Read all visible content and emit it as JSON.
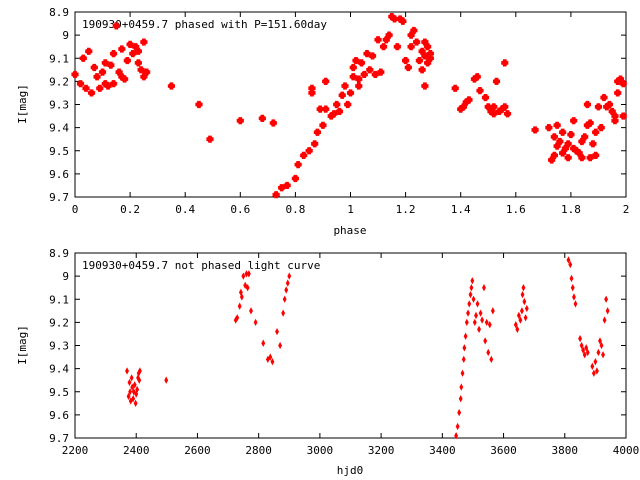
{
  "chart_data": [
    {
      "type": "scatter",
      "title": "190930+0459.7 phased with P=151.60day",
      "xlabel": "phase",
      "ylabel": "I[mag]",
      "xlim": [
        0,
        2
      ],
      "ylim": [
        9.7,
        8.9
      ],
      "y_inverted": true,
      "xticks": [
        "0",
        "0.2",
        "0.4",
        "0.6",
        "0.8",
        "1",
        "1.2",
        "1.4",
        "1.6",
        "1.8",
        "2"
      ],
      "yticks": [
        "8.9",
        "9",
        "9.1",
        "9.2",
        "9.3",
        "9.4",
        "9.5",
        "9.6",
        "9.7"
      ],
      "point_color": "#ff0000",
      "points": [
        [
          0.0,
          9.17
        ],
        [
          0.02,
          9.21
        ],
        [
          0.03,
          9.1
        ],
        [
          0.04,
          9.23
        ],
        [
          0.05,
          9.07
        ],
        [
          0.06,
          9.25
        ],
        [
          0.07,
          9.14
        ],
        [
          0.08,
          9.18
        ],
        [
          0.09,
          9.23
        ],
        [
          0.1,
          9.16
        ],
        [
          0.11,
          9.21
        ],
        [
          0.11,
          9.12
        ],
        [
          0.12,
          9.22
        ],
        [
          0.13,
          9.13
        ],
        [
          0.14,
          9.21
        ],
        [
          0.14,
          9.08
        ],
        [
          0.15,
          8.96
        ],
        [
          0.16,
          9.16
        ],
        [
          0.17,
          9.18
        ],
        [
          0.17,
          9.06
        ],
        [
          0.18,
          9.19
        ],
        [
          0.19,
          9.11
        ],
        [
          0.2,
          9.04
        ],
        [
          0.21,
          9.08
        ],
        [
          0.22,
          9.05
        ],
        [
          0.23,
          9.12
        ],
        [
          0.23,
          9.07
        ],
        [
          0.24,
          9.15
        ],
        [
          0.25,
          9.03
        ],
        [
          0.25,
          9.18
        ],
        [
          0.26,
          9.16
        ],
        [
          0.35,
          9.22
        ],
        [
          0.45,
          9.3
        ],
        [
          0.49,
          9.45
        ],
        [
          0.6,
          9.37
        ],
        [
          0.68,
          9.36
        ],
        [
          0.72,
          9.38
        ],
        [
          0.73,
          9.69
        ],
        [
          0.75,
          9.66
        ],
        [
          0.77,
          9.65
        ],
        [
          0.8,
          9.62
        ],
        [
          0.81,
          9.56
        ],
        [
          0.83,
          9.52
        ],
        [
          0.85,
          9.5
        ],
        [
          0.86,
          9.23
        ],
        [
          0.86,
          9.25
        ],
        [
          0.87,
          9.47
        ],
        [
          0.88,
          9.42
        ],
        [
          0.89,
          9.32
        ],
        [
          0.9,
          9.39
        ],
        [
          0.91,
          9.32
        ],
        [
          0.91,
          9.2
        ],
        [
          0.93,
          9.35
        ],
        [
          0.94,
          9.34
        ],
        [
          0.95,
          9.3
        ],
        [
          0.96,
          9.33
        ],
        [
          0.97,
          9.26
        ],
        [
          0.98,
          9.22
        ],
        [
          0.99,
          9.3
        ],
        [
          1.0,
          9.25
        ],
        [
          1.01,
          9.14
        ],
        [
          1.01,
          9.18
        ],
        [
          1.02,
          9.11
        ],
        [
          1.03,
          9.19
        ],
        [
          1.03,
          9.22
        ],
        [
          1.04,
          9.12
        ],
        [
          1.05,
          9.17
        ],
        [
          1.06,
          9.08
        ],
        [
          1.07,
          9.15
        ],
        [
          1.08,
          9.09
        ],
        [
          1.09,
          9.17
        ],
        [
          1.1,
          9.02
        ],
        [
          1.11,
          9.16
        ],
        [
          1.12,
          9.05
        ],
        [
          1.13,
          9.02
        ],
        [
          1.14,
          9.0
        ],
        [
          1.15,
          8.92
        ],
        [
          1.16,
          8.93
        ],
        [
          1.17,
          9.05
        ],
        [
          1.18,
          8.93
        ],
        [
          1.19,
          8.94
        ],
        [
          1.2,
          9.11
        ],
        [
          1.21,
          9.14
        ],
        [
          1.22,
          9.05
        ],
        [
          1.22,
          9.0
        ],
        [
          1.23,
          8.98
        ],
        [
          1.24,
          9.03
        ],
        [
          1.25,
          9.11
        ],
        [
          1.26,
          9.07
        ],
        [
          1.26,
          9.15
        ],
        [
          1.27,
          9.03
        ],
        [
          1.27,
          9.09
        ],
        [
          1.28,
          9.12
        ],
        [
          1.28,
          9.05
        ],
        [
          1.29,
          9.08
        ],
        [
          1.29,
          9.1
        ],
        [
          1.27,
          9.22
        ],
        [
          1.38,
          9.23
        ],
        [
          1.4,
          9.32
        ],
        [
          1.41,
          9.31
        ],
        [
          1.42,
          9.29
        ],
        [
          1.43,
          9.28
        ],
        [
          1.45,
          9.19
        ],
        [
          1.46,
          9.18
        ],
        [
          1.47,
          9.24
        ],
        [
          1.49,
          9.27
        ],
        [
          1.5,
          9.31
        ],
        [
          1.51,
          9.33
        ],
        [
          1.52,
          9.31
        ],
        [
          1.52,
          9.34
        ],
        [
          1.53,
          9.2
        ],
        [
          1.54,
          9.33
        ],
        [
          1.55,
          9.32
        ],
        [
          1.56,
          9.12
        ],
        [
          1.56,
          9.31
        ],
        [
          1.57,
          9.34
        ],
        [
          1.67,
          9.41
        ],
        [
          1.72,
          9.4
        ],
        [
          1.73,
          9.54
        ],
        [
          1.74,
          9.44
        ],
        [
          1.74,
          9.52
        ],
        [
          1.75,
          9.39
        ],
        [
          1.75,
          9.48
        ],
        [
          1.76,
          9.46
        ],
        [
          1.77,
          9.42
        ],
        [
          1.77,
          9.51
        ],
        [
          1.78,
          9.49
        ],
        [
          1.79,
          9.47
        ],
        [
          1.79,
          9.53
        ],
        [
          1.8,
          9.43
        ],
        [
          1.81,
          9.37
        ],
        [
          1.81,
          9.49
        ],
        [
          1.82,
          9.5
        ],
        [
          1.83,
          9.51
        ],
        [
          1.84,
          9.46
        ],
        [
          1.84,
          9.53
        ],
        [
          1.85,
          9.44
        ],
        [
          1.86,
          9.3
        ],
        [
          1.86,
          9.39
        ],
        [
          1.87,
          9.53
        ],
        [
          1.87,
          9.38
        ],
        [
          1.88,
          9.47
        ],
        [
          1.89,
          9.52
        ],
        [
          1.89,
          9.42
        ],
        [
          1.9,
          9.31
        ],
        [
          1.91,
          9.4
        ],
        [
          1.92,
          9.27
        ],
        [
          1.93,
          9.31
        ],
        [
          1.94,
          9.3
        ],
        [
          1.95,
          9.33
        ],
        [
          1.96,
          9.37
        ],
        [
          1.96,
          9.35
        ],
        [
          1.97,
          9.2
        ],
        [
          1.97,
          9.25
        ],
        [
          1.98,
          9.19
        ],
        [
          1.99,
          9.35
        ],
        [
          1.99,
          9.21
        ]
      ]
    },
    {
      "type": "scatter",
      "title": "190930+0459.7 not phased light curve",
      "xlabel": "hjd0",
      "ylabel": "I[mag]",
      "xlim": [
        2200,
        4000
      ],
      "ylim": [
        9.7,
        8.9
      ],
      "y_inverted": true,
      "xticks": [
        "2200",
        "2400",
        "2600",
        "2800",
        "3000",
        "3200",
        "3400",
        "3600",
        "3800",
        "4000"
      ],
      "yticks": [
        "8.9",
        "9",
        "9.1",
        "9.2",
        "9.3",
        "9.4",
        "9.5",
        "9.6",
        "9.7"
      ],
      "point_color": "#ff0000",
      "points": [
        [
          2370,
          9.41
        ],
        [
          2375,
          9.52
        ],
        [
          2378,
          9.46
        ],
        [
          2380,
          9.5
        ],
        [
          2382,
          9.54
        ],
        [
          2385,
          9.44
        ],
        [
          2387,
          9.48
        ],
        [
          2390,
          9.53
        ],
        [
          2392,
          9.5
        ],
        [
          2395,
          9.47
        ],
        [
          2398,
          9.55
        ],
        [
          2400,
          9.51
        ],
        [
          2403,
          9.49
        ],
        [
          2406,
          9.44
        ],
        [
          2408,
          9.42
        ],
        [
          2410,
          9.45
        ],
        [
          2412,
          9.41
        ],
        [
          2498,
          9.45
        ],
        [
          2725,
          9.19
        ],
        [
          2730,
          9.18
        ],
        [
          2738,
          9.13
        ],
        [
          2742,
          9.07
        ],
        [
          2745,
          9.09
        ],
        [
          2750,
          9.0
        ],
        [
          2756,
          9.04
        ],
        [
          2760,
          8.99
        ],
        [
          2764,
          9.05
        ],
        [
          2768,
          8.99
        ],
        [
          2775,
          9.15
        ],
        [
          2790,
          9.2
        ],
        [
          2815,
          9.29
        ],
        [
          2830,
          9.36
        ],
        [
          2838,
          9.35
        ],
        [
          2845,
          9.37
        ],
        [
          2860,
          9.24
        ],
        [
          2870,
          9.3
        ],
        [
          2880,
          9.16
        ],
        [
          2885,
          9.1
        ],
        [
          2890,
          9.06
        ],
        [
          2895,
          9.03
        ],
        [
          2900,
          9.0
        ],
        [
          3445,
          9.69
        ],
        [
          3450,
          9.65
        ],
        [
          3455,
          9.59
        ],
        [
          3460,
          9.53
        ],
        [
          3462,
          9.48
        ],
        [
          3466,
          9.42
        ],
        [
          3470,
          9.36
        ],
        [
          3472,
          9.31
        ],
        [
          3476,
          9.26
        ],
        [
          3480,
          9.2
        ],
        [
          3484,
          9.16
        ],
        [
          3488,
          9.12
        ],
        [
          3492,
          9.08
        ],
        [
          3495,
          9.05
        ],
        [
          3498,
          9.02
        ],
        [
          3502,
          9.1
        ],
        [
          3506,
          9.2
        ],
        [
          3510,
          9.17
        ],
        [
          3515,
          9.12
        ],
        [
          3520,
          9.23
        ],
        [
          3525,
          9.16
        ],
        [
          3530,
          9.19
        ],
        [
          3536,
          9.05
        ],
        [
          3540,
          9.28
        ],
        [
          3545,
          9.2
        ],
        [
          3550,
          9.33
        ],
        [
          3555,
          9.21
        ],
        [
          3560,
          9.36
        ],
        [
          3565,
          9.15
        ],
        [
          3640,
          9.21
        ],
        [
          3645,
          9.23
        ],
        [
          3650,
          9.17
        ],
        [
          3655,
          9.19
        ],
        [
          3660,
          9.15
        ],
        [
          3662,
          9.08
        ],
        [
          3665,
          9.05
        ],
        [
          3668,
          9.11
        ],
        [
          3672,
          9.18
        ],
        [
          3676,
          9.14
        ],
        [
          3812,
          8.93
        ],
        [
          3818,
          8.95
        ],
        [
          3822,
          9.01
        ],
        [
          3826,
          9.05
        ],
        [
          3830,
          9.09
        ],
        [
          3835,
          9.12
        ],
        [
          3850,
          9.27
        ],
        [
          3855,
          9.3
        ],
        [
          3860,
          9.32
        ],
        [
          3865,
          9.34
        ],
        [
          3870,
          9.31
        ],
        [
          3875,
          9.33
        ],
        [
          3890,
          9.39
        ],
        [
          3895,
          9.42
        ],
        [
          3900,
          9.37
        ],
        [
          3905,
          9.41
        ],
        [
          3910,
          9.33
        ],
        [
          3915,
          9.28
        ],
        [
          3920,
          9.3
        ],
        [
          3925,
          9.34
        ],
        [
          3930,
          9.19
        ],
        [
          3935,
          9.1
        ],
        [
          3940,
          9.15
        ]
      ]
    }
  ]
}
